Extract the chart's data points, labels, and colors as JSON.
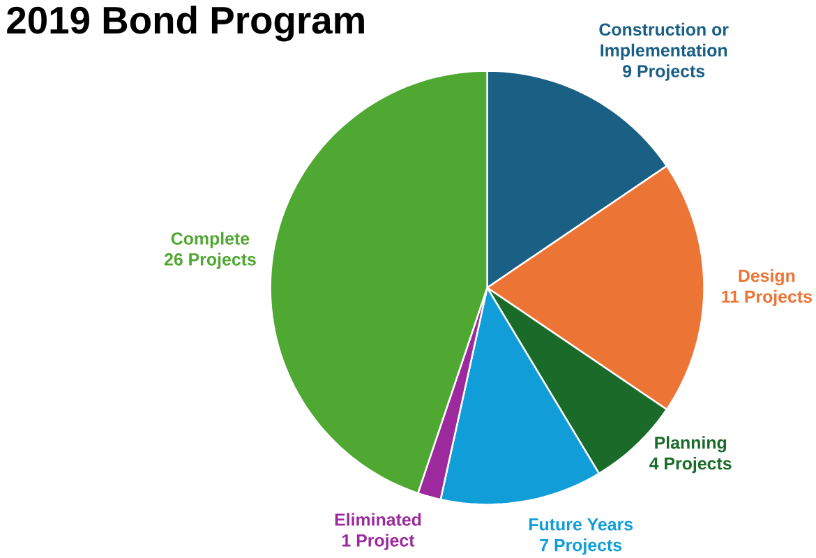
{
  "chart_data": {
    "type": "pie",
    "title": "2019 Bond Program",
    "categories": [
      "Construction or Implementation",
      "Design",
      "Planning",
      "Future Years",
      "Eliminated",
      "Complete"
    ],
    "values": [
      9,
      11,
      4,
      7,
      1,
      26
    ],
    "value_labels": [
      "9 Projects",
      "11 Projects",
      "4 Projects",
      "7 Projects",
      "1 Project",
      "26 Projects"
    ],
    "colors": [
      "#1a5f84",
      "#ec7434",
      "#1a6b2a",
      "#119dd8",
      "#9c2a9c",
      "#4fa831"
    ]
  }
}
